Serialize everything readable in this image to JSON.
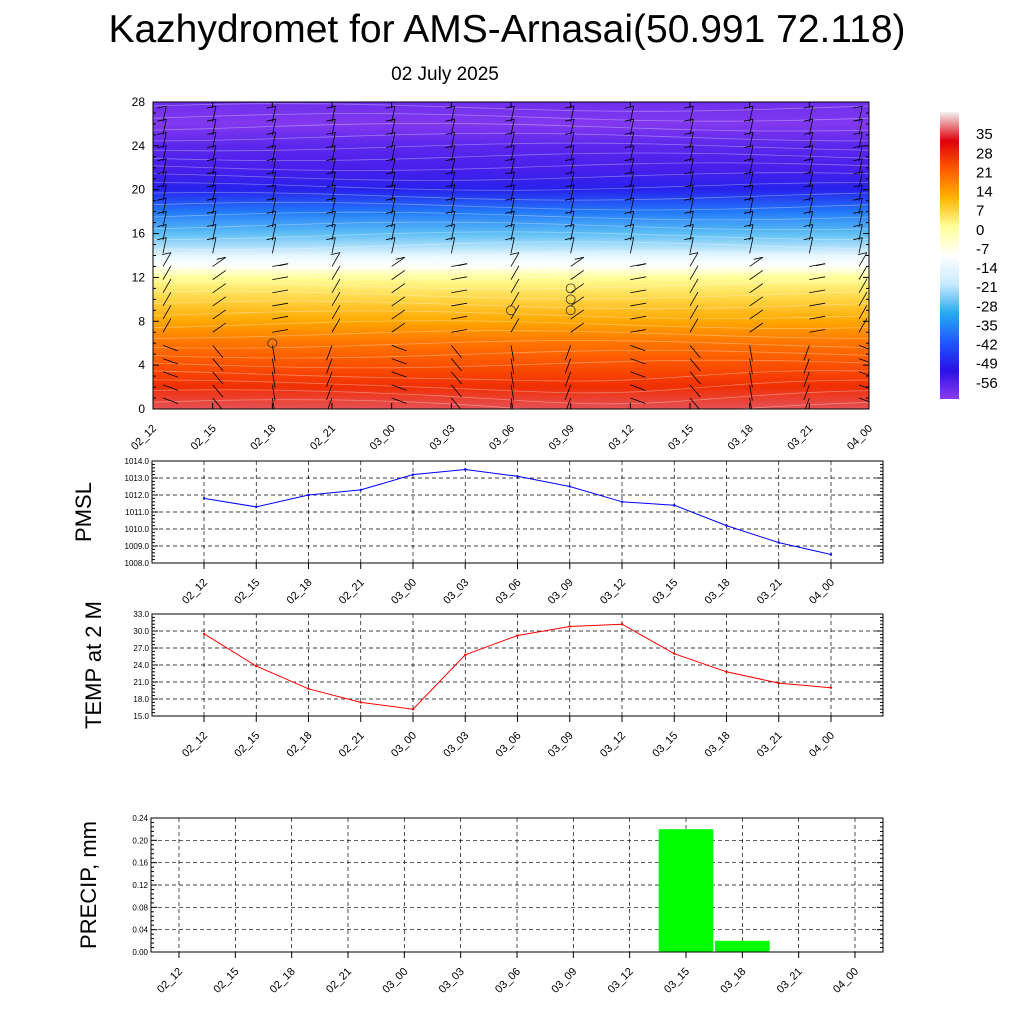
{
  "title": "Kazhydromet for AMS-Arnasai(50.991 72.118)",
  "subtitle": "02 July 2025",
  "colors": {
    "pmsl_line": "#0000ff",
    "temp_line": "#ff0000",
    "precip_bar": "#00ff00",
    "palette_stops": [
      "#f2f2f2",
      "#e0000a",
      "#ff5a00",
      "#ffb400",
      "#ffff9a",
      "#ffffff",
      "#c8eaff",
      "#28aaf0",
      "#1e5aff",
      "#2a10e8",
      "#8a3cf0"
    ]
  },
  "chart_data": [
    {
      "type": "heatmap",
      "description_of_marks": "temperature color field with wind barbs",
      "x_ticks": [
        "02_12",
        "02_15",
        "02_18",
        "02_21",
        "03_00",
        "03_03",
        "03_06",
        "03_09",
        "03_12",
        "03_15",
        "03_18",
        "03_21",
        "04_00"
      ],
      "y_ticks": [
        0,
        4,
        8,
        12,
        16,
        20,
        24,
        28
      ],
      "ylim": [
        0,
        28
      ],
      "colorbar_labels": [
        "35",
        "28",
        "21",
        "14",
        "7",
        "0",
        "-7",
        "-14",
        "-21",
        "-28",
        "-35",
        "-42",
        "-49",
        "-56"
      ],
      "colorbar_range": [
        -63,
        42
      ],
      "temperature_by_level": {
        "levels": [
          0,
          2,
          4,
          6,
          8,
          10,
          12,
          13,
          14,
          16,
          18,
          20,
          22,
          24,
          26,
          28
        ],
        "values": [
          35,
          26,
          22,
          18,
          12,
          6,
          0,
          -10,
          -15,
          -28,
          -38,
          -50,
          -56,
          -58,
          -62,
          -60
        ]
      },
      "calm_markers": [
        {
          "time": "02_18",
          "level": 6
        },
        {
          "time": "03_06",
          "level": 9
        },
        {
          "time": "03_09",
          "level": 9
        },
        {
          "time": "03_09",
          "level": 10
        },
        {
          "time": "03_09",
          "level": 11
        }
      ]
    },
    {
      "type": "line",
      "ylabel": "PMSL",
      "x": [
        "02_12",
        "02_15",
        "02_18",
        "02_21",
        "03_00",
        "03_03",
        "03_06",
        "03_09",
        "03_12",
        "03_15",
        "03_18",
        "03_21",
        "04_00"
      ],
      "values": [
        1011.8,
        1011.3,
        1012.0,
        1012.3,
        1013.2,
        1013.5,
        1013.1,
        1012.5,
        1011.6,
        1011.4,
        1010.2,
        1009.2,
        1008.5
      ],
      "ylim": [
        1008.0,
        1014.0
      ],
      "y_ticks": [
        "1008.0",
        "1009.0",
        "1010.0",
        "1011.0",
        "1012.0",
        "1013.0",
        "1014.0"
      ],
      "grid": true
    },
    {
      "type": "line",
      "ylabel": "TEMP at 2 M",
      "x": [
        "02_12",
        "02_15",
        "02_18",
        "02_21",
        "03_00",
        "03_03",
        "03_06",
        "03_09",
        "03_12",
        "03_15",
        "03_18",
        "03_21",
        "04_00"
      ],
      "values": [
        29.5,
        23.8,
        19.8,
        17.4,
        16.2,
        25.8,
        29.2,
        30.8,
        31.2,
        26.0,
        22.8,
        20.8,
        20.0
      ],
      "ylim": [
        15.0,
        33.0
      ],
      "y_ticks": [
        "15.0",
        "18.0",
        "21.0",
        "24.0",
        "27.0",
        "30.0",
        "33.0"
      ],
      "grid": true
    },
    {
      "type": "bar",
      "ylabel": "PRECIP, mm",
      "categories": [
        "02_12",
        "02_15",
        "02_18",
        "02_21",
        "03_00",
        "03_03",
        "03_06",
        "03_09",
        "03_12",
        "03_15",
        "03_18",
        "03_21",
        "04_00"
      ],
      "values": [
        0,
        0,
        0,
        0,
        0,
        0,
        0,
        0,
        0,
        0.22,
        0.02,
        0,
        0
      ],
      "ylim": [
        0,
        0.24
      ],
      "y_ticks": [
        "0.00",
        "0.04",
        "0.08",
        "0.12",
        "0.16",
        "0.20",
        "0.24"
      ],
      "grid": true
    }
  ]
}
